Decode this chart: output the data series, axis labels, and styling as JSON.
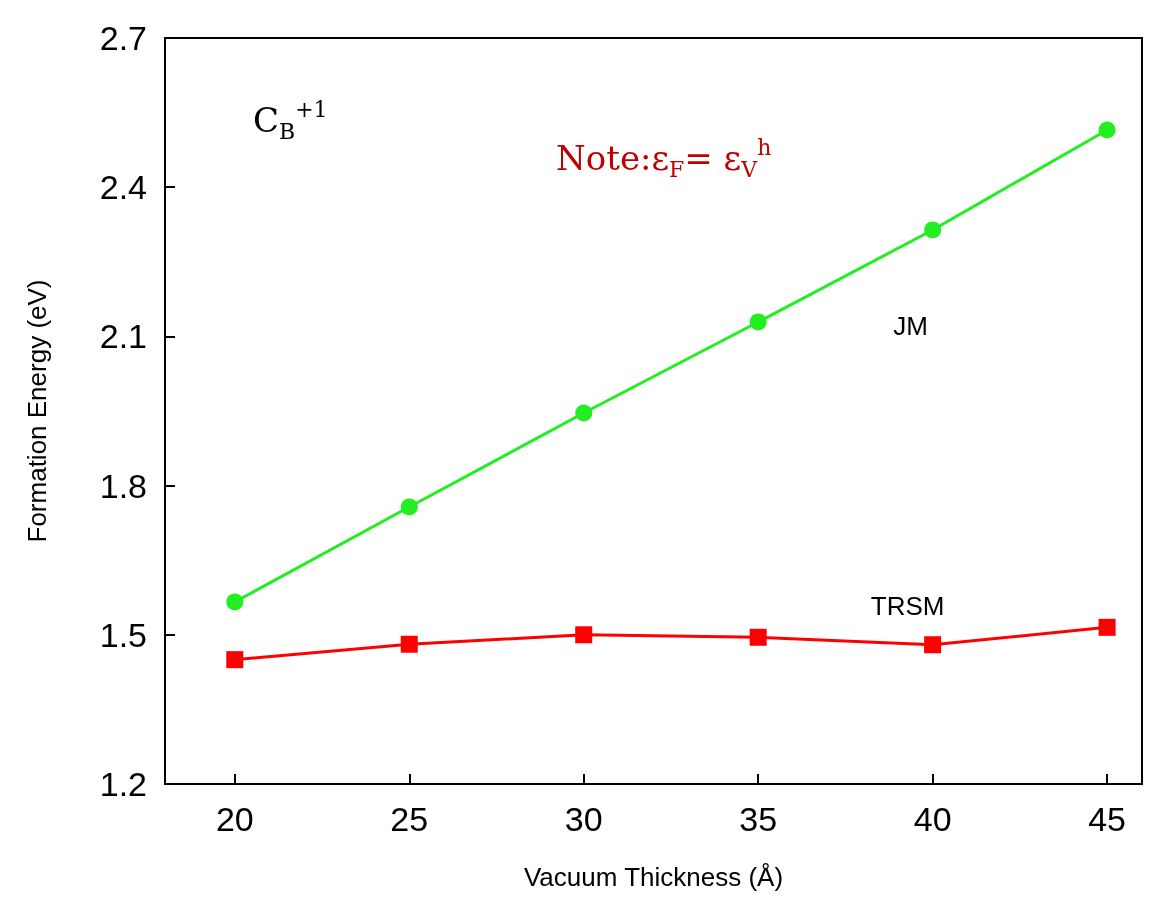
{
  "chart_data": {
    "type": "line",
    "xlabel": "Vacuum Thickness (Å)",
    "ylabel": "Formation Energy (eV)",
    "x": [
      20,
      25,
      30,
      35,
      40,
      45
    ],
    "series": [
      {
        "name": "JM",
        "color": "#22ee22",
        "marker": "circle",
        "values": [
          1.566,
          1.757,
          1.946,
          2.129,
          2.314,
          2.515
        ]
      },
      {
        "name": "TRSM",
        "color": "#ff0000",
        "marker": "square",
        "values": [
          1.45,
          1.481,
          1.5,
          1.495,
          1.48,
          1.515
        ]
      }
    ],
    "xlim": [
      18,
      46
    ],
    "xticks": [
      20,
      25,
      30,
      35,
      40,
      45
    ],
    "ylim": [
      1.2,
      2.7
    ],
    "yticks": [
      1.2,
      1.5,
      1.8,
      2.1,
      2.4,
      2.7
    ],
    "annotations": [
      "C$_{B}$$^{+1}$",
      "Note:ε$_{F}$= ε$_{V}$$^{h}$"
    ],
    "grid": false,
    "legend": false,
    "line_style": "solid"
  }
}
